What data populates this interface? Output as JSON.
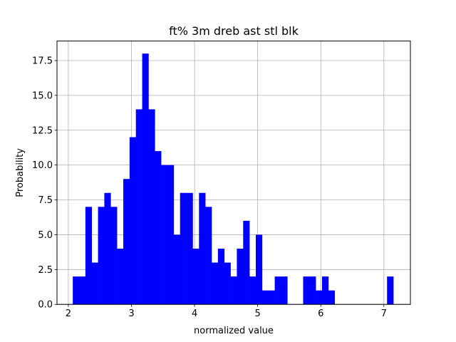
{
  "chart_data": {
    "type": "bar",
    "title": "ft% 3m dreb ast stl blk",
    "xlabel": "normalized value",
    "ylabel": "Probability",
    "xlim": [
      1.82,
      7.42
    ],
    "ylim": [
      0,
      18.9
    ],
    "grid": true,
    "bar_color": "#0000ff",
    "bin_width": 0.1,
    "xticks": [
      2,
      3,
      4,
      5,
      6,
      7
    ],
    "xtick_labels": [
      "2",
      "3",
      "4",
      "5",
      "6",
      "7"
    ],
    "yticks": [
      0,
      2.5,
      5,
      7.5,
      10,
      12.5,
      15,
      17.5
    ],
    "ytick_labels": [
      "0.0",
      "2.5",
      "5.0",
      "7.5",
      "10.0",
      "12.5",
      "15.0",
      "17.5"
    ],
    "bins": [
      {
        "x0": 2.07,
        "x1": 2.17,
        "value": 2
      },
      {
        "x0": 2.17,
        "x1": 2.27,
        "value": 2
      },
      {
        "x0": 2.27,
        "x1": 2.37,
        "value": 7
      },
      {
        "x0": 2.37,
        "x1": 2.47,
        "value": 3
      },
      {
        "x0": 2.47,
        "x1": 2.57,
        "value": 7
      },
      {
        "x0": 2.57,
        "x1": 2.67,
        "value": 8
      },
      {
        "x0": 2.67,
        "x1": 2.77,
        "value": 7
      },
      {
        "x0": 2.77,
        "x1": 2.87,
        "value": 4
      },
      {
        "x0": 2.87,
        "x1": 2.97,
        "value": 9
      },
      {
        "x0": 2.97,
        "x1": 3.07,
        "value": 12
      },
      {
        "x0": 3.07,
        "x1": 3.17,
        "value": 14
      },
      {
        "x0": 3.17,
        "x1": 3.27,
        "value": 18
      },
      {
        "x0": 3.27,
        "x1": 3.37,
        "value": 14
      },
      {
        "x0": 3.37,
        "x1": 3.47,
        "value": 11
      },
      {
        "x0": 3.47,
        "x1": 3.57,
        "value": 10
      },
      {
        "x0": 3.57,
        "x1": 3.67,
        "value": 10
      },
      {
        "x0": 3.67,
        "x1": 3.77,
        "value": 5
      },
      {
        "x0": 3.77,
        "x1": 3.87,
        "value": 8
      },
      {
        "x0": 3.87,
        "x1": 3.97,
        "value": 8
      },
      {
        "x0": 3.97,
        "x1": 4.07,
        "value": 4
      },
      {
        "x0": 4.07,
        "x1": 4.17,
        "value": 8
      },
      {
        "x0": 4.17,
        "x1": 4.27,
        "value": 7
      },
      {
        "x0": 4.27,
        "x1": 4.37,
        "value": 3
      },
      {
        "x0": 4.37,
        "x1": 4.47,
        "value": 4
      },
      {
        "x0": 4.47,
        "x1": 4.57,
        "value": 3
      },
      {
        "x0": 4.57,
        "x1": 4.67,
        "value": 2
      },
      {
        "x0": 4.67,
        "x1": 4.77,
        "value": 4
      },
      {
        "x0": 4.77,
        "x1": 4.87,
        "value": 6
      },
      {
        "x0": 4.87,
        "x1": 4.97,
        "value": 2
      },
      {
        "x0": 4.97,
        "x1": 5.07,
        "value": 5
      },
      {
        "x0": 5.07,
        "x1": 5.17,
        "value": 1
      },
      {
        "x0": 5.17,
        "x1": 5.27,
        "value": 1
      },
      {
        "x0": 5.27,
        "x1": 5.37,
        "value": 2
      },
      {
        "x0": 5.37,
        "x1": 5.47,
        "value": 2
      },
      {
        "x0": 5.72,
        "x1": 5.82,
        "value": 2
      },
      {
        "x0": 5.82,
        "x1": 5.92,
        "value": 2
      },
      {
        "x0": 5.92,
        "x1": 6.02,
        "value": 1
      },
      {
        "x0": 6.02,
        "x1": 6.12,
        "value": 2
      },
      {
        "x0": 6.12,
        "x1": 6.22,
        "value": 1
      },
      {
        "x0": 7.05,
        "x1": 7.15,
        "value": 2
      }
    ]
  }
}
